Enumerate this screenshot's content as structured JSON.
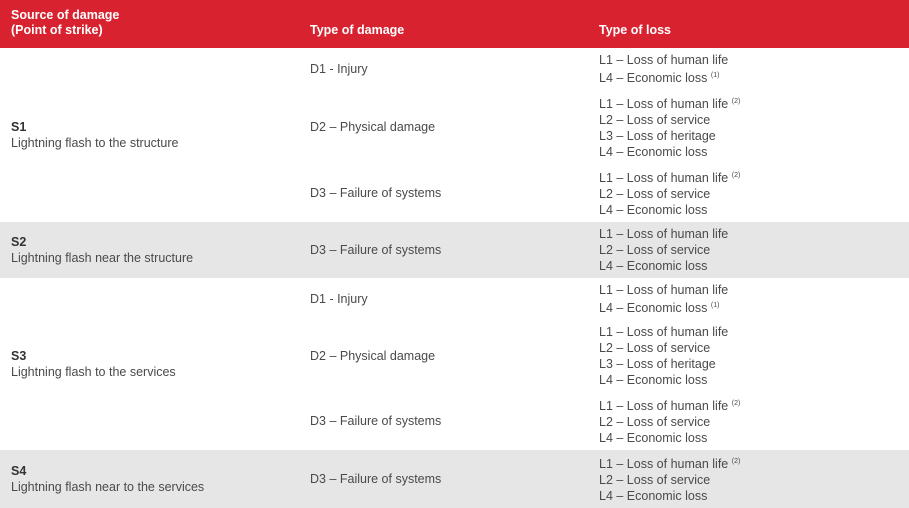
{
  "header": {
    "source": [
      "Source of damage",
      "(Point of strike)"
    ],
    "damage": "Type of damage",
    "loss": "Type of loss"
  },
  "sources": [
    {
      "code": "S1",
      "label": "Lightning flash to the structure",
      "damages": [
        {
          "type": "D1 - Injury",
          "losses": [
            {
              "text": "L1 – Loss of human life"
            },
            {
              "text": "L4 – Economic loss",
              "note": "(1)"
            }
          ]
        },
        {
          "type": "D2 – Physical damage",
          "losses": [
            {
              "text": "L1 – Loss of human life",
              "note": "(2)"
            },
            {
              "text": "L2 – Loss of service"
            },
            {
              "text": "L3 – Loss of heritage"
            },
            {
              "text": "L4 – Economic loss"
            }
          ]
        },
        {
          "type": "D3 – Failure of systems",
          "losses": [
            {
              "text": "L1 – Loss of human life",
              "note": "(2)"
            },
            {
              "text": "L2 – Loss of service"
            },
            {
              "text": "L4 – Economic loss"
            }
          ]
        }
      ]
    },
    {
      "code": "S2",
      "label": "Lightning flash near the structure",
      "damages": [
        {
          "type": "D3 – Failure of systems",
          "losses": [
            {
              "text": "L1 – Loss of human life"
            },
            {
              "text": "L2 – Loss of service"
            },
            {
              "text": "L4 – Economic loss"
            }
          ]
        }
      ]
    },
    {
      "code": "S3",
      "label": "Lightning flash to the services",
      "damages": [
        {
          "type": "D1 - Injury",
          "losses": [
            {
              "text": "L1 – Loss of human life"
            },
            {
              "text": "L4 – Economic loss",
              "note": "(1)"
            }
          ]
        },
        {
          "type": "D2 – Physical damage",
          "losses": [
            {
              "text": "L1 – Loss of human life"
            },
            {
              "text": "L2 – Loss of service"
            },
            {
              "text": "L3 – Loss of heritage"
            },
            {
              "text": "L4 – Economic loss"
            }
          ]
        },
        {
          "type": "D3 – Failure of systems",
          "losses": [
            {
              "text": "L1 – Loss of human life",
              "note": "(2)"
            },
            {
              "text": "L2 – Loss of service"
            },
            {
              "text": "L4 – Economic loss"
            }
          ]
        }
      ]
    },
    {
      "code": "S4",
      "label": "Lightning flash near to the services",
      "damages": [
        {
          "type": "D3 – Failure of systems",
          "losses": [
            {
              "text": "L1 – Loss of human life",
              "note": "(2)"
            },
            {
              "text": "L2 – Loss of service"
            },
            {
              "text": "L4 – Economic loss"
            }
          ]
        }
      ]
    }
  ]
}
